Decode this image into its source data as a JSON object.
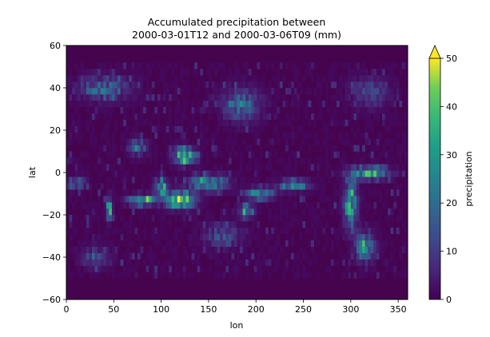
{
  "chart_data": {
    "type": "heatmap",
    "title_line1": "Accumulated precipitation between",
    "title_line2": "2000-03-01T12 and 2000-03-06T09 (mm)",
    "xlabel": "lon",
    "ylabel": "lat",
    "xlim": [
      0,
      360
    ],
    "ylim": [
      -60,
      60
    ],
    "xticks": [
      0,
      50,
      100,
      150,
      200,
      250,
      300,
      350
    ],
    "yticks": [
      -60,
      -40,
      -20,
      0,
      20,
      40,
      60
    ],
    "data_lat_range": [
      -50,
      50
    ],
    "colormap": "viridis",
    "colorbar": {
      "label": "precipitation",
      "range": [
        0,
        50
      ],
      "ticks": [
        0,
        10,
        20,
        30,
        40,
        50
      ],
      "extend": "max"
    },
    "colors": {
      "low": "#440154",
      "mid": "#21918c",
      "high": "#fde725",
      "outside_data": "#46044f"
    },
    "rain_features": [
      {
        "lon": 125,
        "lat": 8,
        "lon_span": 22,
        "lat_span": 8,
        "intensity": 55
      },
      {
        "lon": 120,
        "lat": -13,
        "lon_span": 30,
        "lat_span": 8,
        "intensity": 55
      },
      {
        "lon": 80,
        "lat": -13,
        "lon_span": 28,
        "lat_span": 5,
        "intensity": 50
      },
      {
        "lon": 100,
        "lat": -7,
        "lon_span": 14,
        "lat_span": 8,
        "intensity": 45
      },
      {
        "lon": 45,
        "lat": -17,
        "lon_span": 6,
        "lat_span": 10,
        "intensity": 50
      },
      {
        "lon": 150,
        "lat": -5,
        "lon_span": 40,
        "lat_span": 8,
        "intensity": 35
      },
      {
        "lon": 205,
        "lat": -10,
        "lon_span": 30,
        "lat_span": 6,
        "intensity": 35
      },
      {
        "lon": 190,
        "lat": -18,
        "lon_span": 15,
        "lat_span": 6,
        "intensity": 40
      },
      {
        "lon": 240,
        "lat": -6,
        "lon_span": 30,
        "lat_span": 5,
        "intensity": 40
      },
      {
        "lon": 300,
        "lat": -15,
        "lon_span": 14,
        "lat_span": 22,
        "intensity": 45
      },
      {
        "lon": 320,
        "lat": 0,
        "lon_span": 40,
        "lat_span": 6,
        "intensity": 45
      },
      {
        "lon": 315,
        "lat": -35,
        "lon_span": 20,
        "lat_span": 14,
        "intensity": 35
      },
      {
        "lon": 40,
        "lat": 40,
        "lon_span": 55,
        "lat_span": 12,
        "intensity": 20
      },
      {
        "lon": 185,
        "lat": 32,
        "lon_span": 40,
        "lat_span": 16,
        "intensity": 22
      },
      {
        "lon": 320,
        "lat": 38,
        "lon_span": 40,
        "lat_span": 14,
        "intensity": 15
      },
      {
        "lon": 30,
        "lat": -40,
        "lon_span": 30,
        "lat_span": 10,
        "intensity": 15
      },
      {
        "lon": 165,
        "lat": -30,
        "lon_span": 40,
        "lat_span": 12,
        "intensity": 15
      },
      {
        "lon": 75,
        "lat": 12,
        "lon_span": 20,
        "lat_span": 8,
        "intensity": 18
      },
      {
        "lon": 10,
        "lat": -5,
        "lon_span": 20,
        "lat_span": 6,
        "intensity": 20
      }
    ]
  }
}
